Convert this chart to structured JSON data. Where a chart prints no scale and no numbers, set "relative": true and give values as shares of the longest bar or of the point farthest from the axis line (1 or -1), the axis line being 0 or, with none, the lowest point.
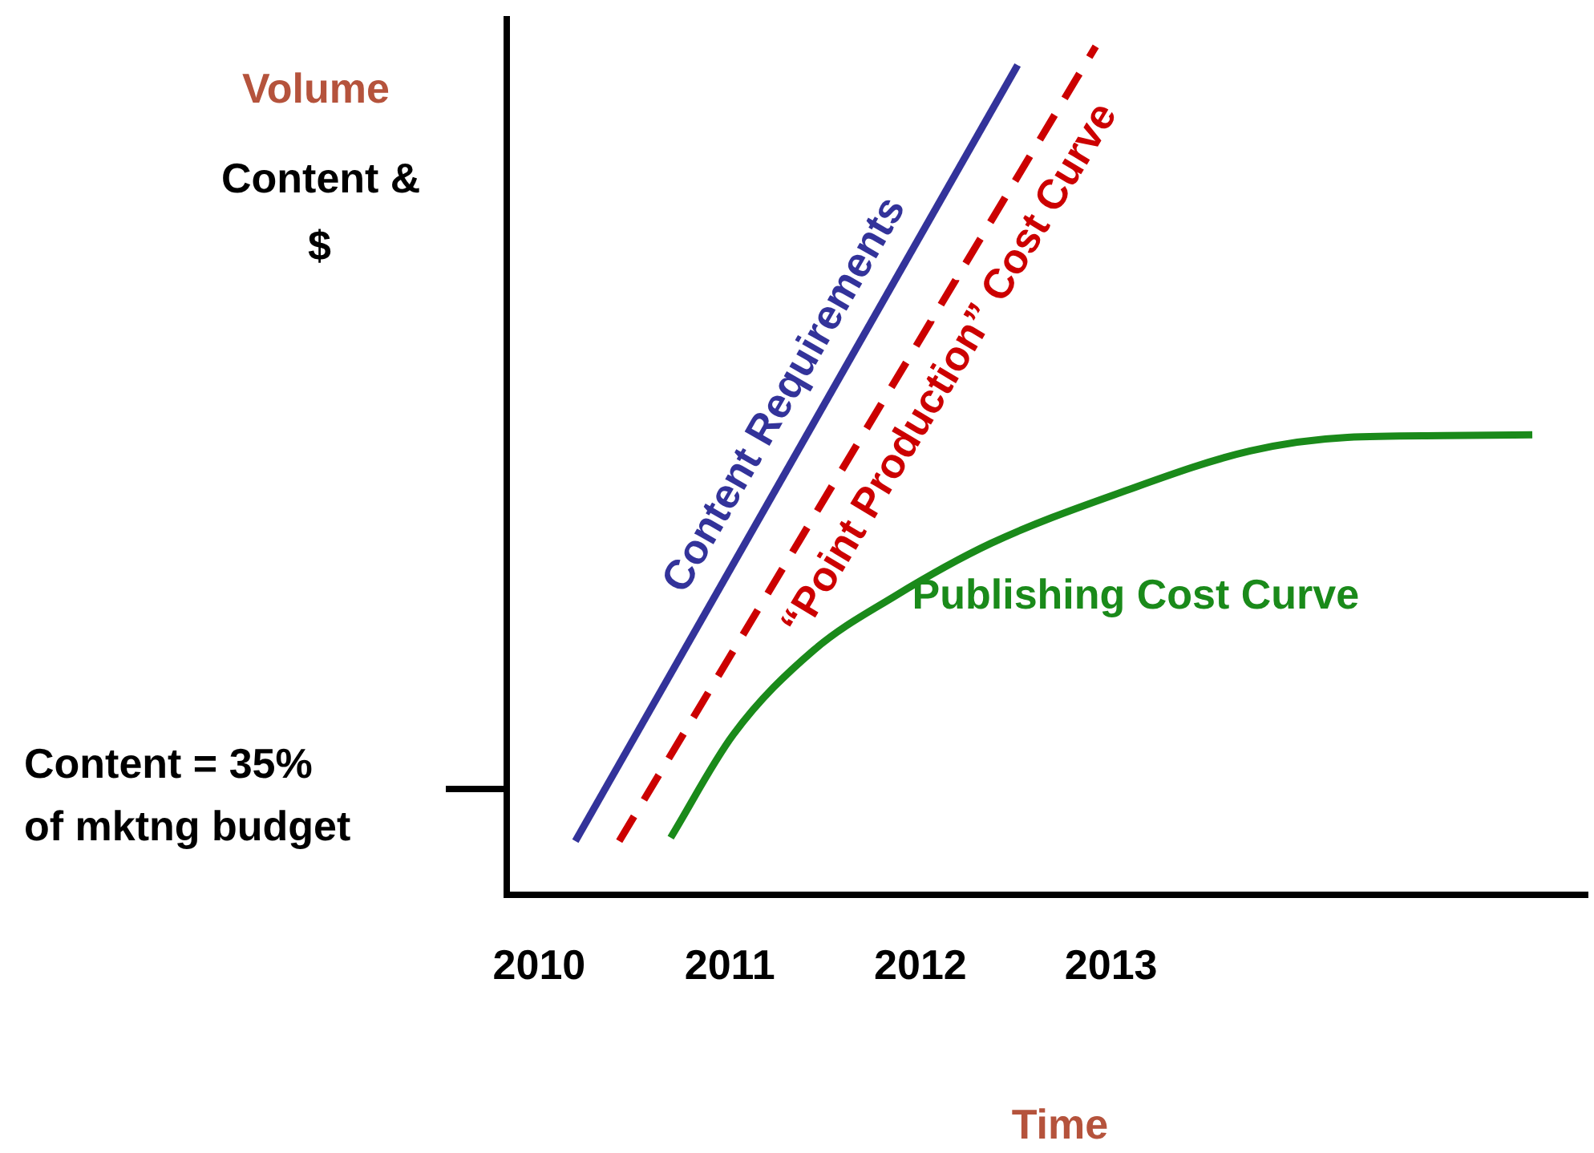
{
  "chart_data": {
    "type": "line",
    "relative": true,
    "xlabel": "Time",
    "ylabel": "Volume",
    "annotations": [
      "Content &\n$",
      "Content = 35%\nof mktng budget"
    ],
    "xlim": [
      2009.83,
      2015.5
    ],
    "xticks": [
      2010,
      2011,
      2012,
      2013
    ],
    "marker": "none",
    "grid": false,
    "legend": false,
    "series": [
      {
        "name": "Content Requirements",
        "color": "#33339a",
        "x": [
          2010.19,
          2012.51
        ],
        "values": [
          0.063,
          0.978
        ]
      },
      {
        "name": "“Point Production” Cost Curve",
        "color": "#cc0000",
        "line_style": "dashed",
        "x": [
          2010.42,
          2012.92
        ],
        "values": [
          0.063,
          1
        ]
      },
      {
        "name": "Publishing Cost Curve",
        "color": "#1a8a1a",
        "x": [
          2010.69,
          2011.02,
          2011.44,
          2011.86,
          2012.37,
          2013.05,
          2013.73,
          2014.24,
          2014.75,
          2015.21
        ],
        "values": [
          0.067,
          0.189,
          0.288,
          0.351,
          0.414,
          0.474,
          0.523,
          0.539,
          0.541,
          0.542
        ]
      }
    ]
  }
}
